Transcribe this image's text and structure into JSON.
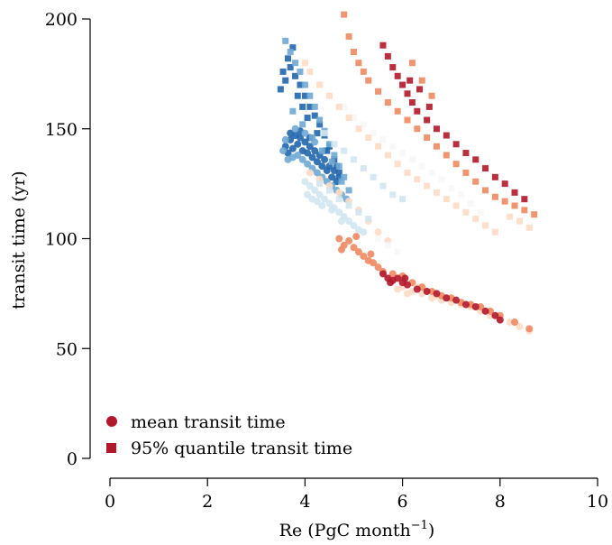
{
  "chart_data": {
    "type": "scatter",
    "xlabel": "Re (PgC month",
    "xlabel_sup": "−1",
    "xlabel_end": ")",
    "ylabel": "transit time (yr)",
    "xlim": [
      0,
      10
    ],
    "ylim": [
      0,
      200
    ],
    "xticks": [
      0,
      2,
      4,
      6,
      8,
      10
    ],
    "yticks": [
      0,
      50,
      100,
      150,
      200
    ],
    "grid": false,
    "legend_position": "bottom-left",
    "legend": [
      {
        "label": "mean transit time",
        "marker": "circle",
        "color": "#b2182b"
      },
      {
        "label": "95% quantile transit time",
        "marker": "square",
        "color": "#b2182b"
      }
    ],
    "series": [
      {
        "marker": "circle",
        "color": "#2166ac",
        "points": [
          [
            3.6,
            142
          ],
          [
            3.7,
            145
          ],
          [
            3.8,
            147
          ],
          [
            3.9,
            146
          ],
          [
            4.0,
            144
          ],
          [
            4.1,
            142
          ],
          [
            4.2,
            140
          ],
          [
            4.3,
            138
          ],
          [
            4.4,
            136
          ],
          [
            4.5,
            133
          ],
          [
            4.6,
            131
          ],
          [
            4.7,
            128
          ],
          [
            3.65,
            139
          ],
          [
            3.75,
            141
          ],
          [
            3.85,
            143
          ],
          [
            3.95,
            140
          ],
          [
            4.05,
            139
          ],
          [
            4.15,
            137
          ],
          [
            4.25,
            135
          ],
          [
            4.35,
            133
          ],
          [
            4.45,
            131
          ],
          [
            4.55,
            128
          ],
          [
            4.65,
            126
          ],
          [
            3.7,
            148
          ],
          [
            3.9,
            149
          ],
          [
            4.1,
            146
          ]
        ]
      },
      {
        "marker": "circle",
        "color": "#6fa8d3",
        "points": [
          [
            3.55,
            140
          ],
          [
            3.65,
            136
          ],
          [
            3.75,
            137
          ],
          [
            3.85,
            138
          ],
          [
            3.95,
            136
          ],
          [
            4.05,
            134
          ],
          [
            4.15,
            132
          ],
          [
            4.25,
            130
          ],
          [
            4.35,
            128
          ],
          [
            4.45,
            126
          ],
          [
            4.55,
            124
          ],
          [
            4.65,
            122
          ],
          [
            4.75,
            120
          ],
          [
            4.85,
            118
          ],
          [
            3.6,
            145
          ],
          [
            3.8,
            150
          ],
          [
            4.0,
            148
          ],
          [
            4.2,
            144
          ],
          [
            4.4,
            140
          ]
        ]
      },
      {
        "marker": "circle",
        "color": "#d1e5f0",
        "points": [
          [
            4.0,
            126
          ],
          [
            4.1,
            124
          ],
          [
            4.2,
            122
          ],
          [
            4.3,
            120
          ],
          [
            4.4,
            118
          ],
          [
            4.5,
            116
          ],
          [
            4.6,
            114
          ],
          [
            4.7,
            112
          ],
          [
            4.8,
            110
          ],
          [
            4.9,
            108
          ],
          [
            5.0,
            106
          ],
          [
            5.1,
            104
          ],
          [
            5.2,
            103
          ],
          [
            4.05,
            120
          ],
          [
            4.15,
            118
          ],
          [
            4.25,
            117
          ],
          [
            4.35,
            115
          ],
          [
            4.55,
            113
          ],
          [
            4.75,
            108
          ]
        ]
      },
      {
        "marker": "circle",
        "color": "#fddbc7",
        "points": [
          [
            4.1,
            130
          ],
          [
            4.3,
            127
          ],
          [
            4.5,
            124
          ],
          [
            4.7,
            121
          ],
          [
            4.9,
            117
          ],
          [
            5.1,
            113
          ],
          [
            5.3,
            108
          ],
          [
            5.5,
            103
          ],
          [
            5.7,
            99
          ],
          [
            6.0,
            78
          ],
          [
            6.2,
            76
          ],
          [
            6.4,
            75
          ],
          [
            6.6,
            73
          ],
          [
            6.8,
            72
          ],
          [
            7.0,
            71
          ],
          [
            7.2,
            70
          ],
          [
            7.4,
            69
          ],
          [
            7.6,
            67
          ],
          [
            7.8,
            65
          ],
          [
            8.0,
            63
          ],
          [
            8.2,
            62
          ],
          [
            8.4,
            60
          ],
          [
            8.6,
            58
          ],
          [
            5.9,
            77
          ],
          [
            6.1,
            75
          ],
          [
            6.3,
            78
          ],
          [
            6.5,
            76
          ],
          [
            6.7,
            74
          ]
        ]
      },
      {
        "marker": "circle",
        "color": "#ef8a62",
        "points": [
          [
            4.7,
            100
          ],
          [
            4.8,
            97
          ],
          [
            4.9,
            99
          ],
          [
            5.0,
            96
          ],
          [
            5.1,
            94
          ],
          [
            5.2,
            92
          ],
          [
            5.3,
            90
          ],
          [
            5.4,
            89
          ],
          [
            5.5,
            87
          ],
          [
            5.6,
            85
          ],
          [
            5.8,
            84
          ],
          [
            6.0,
            83
          ],
          [
            6.2,
            80
          ],
          [
            6.4,
            78
          ],
          [
            6.6,
            76
          ],
          [
            6.8,
            74
          ],
          [
            7.0,
            73
          ],
          [
            7.2,
            71
          ],
          [
            7.4,
            70
          ],
          [
            7.6,
            69
          ],
          [
            7.8,
            67
          ],
          [
            8.0,
            65
          ],
          [
            8.3,
            62
          ],
          [
            8.6,
            59
          ],
          [
            4.75,
            95
          ],
          [
            5.05,
            101
          ],
          [
            5.35,
            93
          ]
        ]
      },
      {
        "marker": "circle",
        "color": "#b2182b",
        "points": [
          [
            5.6,
            84
          ],
          [
            5.7,
            82
          ],
          [
            5.8,
            81
          ],
          [
            5.9,
            82
          ],
          [
            6.0,
            80
          ],
          [
            6.1,
            79
          ],
          [
            6.3,
            77
          ],
          [
            6.5,
            76
          ],
          [
            6.7,
            75
          ],
          [
            6.9,
            73
          ],
          [
            7.1,
            72
          ],
          [
            7.3,
            70
          ],
          [
            7.5,
            69
          ],
          [
            7.7,
            67
          ],
          [
            7.9,
            65
          ],
          [
            8.0,
            63
          ],
          [
            5.75,
            80
          ],
          [
            6.05,
            82
          ]
        ]
      },
      {
        "marker": "square",
        "color": "#2166ac",
        "points": [
          [
            3.5,
            168
          ],
          [
            3.6,
            172
          ],
          [
            3.7,
            178
          ],
          [
            3.8,
            174
          ],
          [
            3.9,
            170
          ],
          [
            4.0,
            165
          ],
          [
            4.1,
            160
          ],
          [
            4.2,
            156
          ],
          [
            4.3,
            152
          ],
          [
            4.4,
            147
          ],
          [
            4.5,
            142
          ],
          [
            4.6,
            136
          ],
          [
            4.7,
            130
          ],
          [
            3.55,
            176
          ],
          [
            3.65,
            182
          ],
          [
            3.75,
            187
          ],
          [
            3.85,
            165
          ],
          [
            3.95,
            160
          ],
          [
            4.05,
            155
          ],
          [
            4.25,
            148
          ],
          [
            4.45,
            140
          ],
          [
            4.65,
            133
          ]
        ]
      },
      {
        "marker": "square",
        "color": "#6fa8d3",
        "points": [
          [
            3.6,
            190
          ],
          [
            3.7,
            185
          ],
          [
            3.8,
            180
          ],
          [
            3.9,
            176
          ],
          [
            4.0,
            170
          ],
          [
            4.1,
            165
          ],
          [
            4.2,
            160
          ],
          [
            4.3,
            154
          ],
          [
            4.4,
            149
          ],
          [
            4.5,
            143
          ],
          [
            4.6,
            138
          ],
          [
            4.7,
            133
          ],
          [
            4.8,
            128
          ],
          [
            4.9,
            122
          ],
          [
            3.75,
            158
          ],
          [
            3.95,
            152
          ],
          [
            4.15,
            146
          ],
          [
            4.35,
            140
          ],
          [
            4.55,
            135
          ],
          [
            4.75,
            126
          ]
        ]
      },
      {
        "marker": "square",
        "color": "#d1e5f0",
        "points": [
          [
            4.4,
            148
          ],
          [
            4.6,
            143
          ],
          [
            4.8,
            140
          ],
          [
            5.0,
            136
          ],
          [
            5.2,
            132
          ],
          [
            5.4,
            128
          ],
          [
            5.6,
            124
          ],
          [
            5.8,
            120
          ],
          [
            6.0,
            118
          ],
          [
            4.3,
            125
          ],
          [
            4.5,
            122
          ],
          [
            4.7,
            118
          ],
          [
            4.9,
            115
          ],
          [
            5.1,
            112
          ],
          [
            5.3,
            109
          ]
        ]
      },
      {
        "marker": "square",
        "color": "#f7f7f7",
        "points": [
          [
            4.8,
            160
          ],
          [
            5.0,
            155
          ],
          [
            5.2,
            152
          ],
          [
            5.4,
            148
          ],
          [
            5.6,
            145
          ],
          [
            5.8,
            142
          ],
          [
            6.0,
            139
          ],
          [
            6.2,
            136
          ],
          [
            6.4,
            133
          ],
          [
            6.6,
            130
          ],
          [
            6.8,
            127
          ],
          [
            7.0,
            123
          ],
          [
            7.2,
            120
          ],
          [
            7.4,
            116
          ],
          [
            7.6,
            112
          ],
          [
            5.5,
            100
          ],
          [
            5.7,
            97
          ],
          [
            5.9,
            94
          ]
        ]
      },
      {
        "marker": "square",
        "color": "#fddbc7",
        "points": [
          [
            4.0,
            180
          ],
          [
            4.1,
            176
          ],
          [
            4.3,
            170
          ],
          [
            4.5,
            165
          ],
          [
            4.7,
            160
          ],
          [
            4.9,
            155
          ],
          [
            5.1,
            150
          ],
          [
            5.3,
            146
          ],
          [
            5.5,
            142
          ],
          [
            5.7,
            138
          ],
          [
            5.9,
            134
          ],
          [
            6.1,
            130
          ],
          [
            6.3,
            127
          ],
          [
            6.5,
            124
          ],
          [
            6.7,
            121
          ],
          [
            6.9,
            118
          ],
          [
            7.1,
            115
          ],
          [
            7.3,
            112
          ],
          [
            7.5,
            109
          ],
          [
            7.7,
            106
          ],
          [
            7.9,
            103
          ],
          [
            8.2,
            110
          ],
          [
            8.4,
            108
          ],
          [
            8.6,
            105
          ]
        ]
      },
      {
        "marker": "square",
        "color": "#ef8a62",
        "points": [
          [
            4.8,
            202
          ],
          [
            4.9,
            192
          ],
          [
            5.0,
            185
          ],
          [
            5.1,
            180
          ],
          [
            5.2,
            176
          ],
          [
            5.3,
            172
          ],
          [
            5.5,
            167
          ],
          [
            5.7,
            162
          ],
          [
            5.9,
            158
          ],
          [
            6.1,
            154
          ],
          [
            6.3,
            150
          ],
          [
            6.5,
            146
          ],
          [
            6.7,
            142
          ],
          [
            6.9,
            138
          ],
          [
            7.1,
            134
          ],
          [
            7.3,
            130
          ],
          [
            7.5,
            126
          ],
          [
            7.7,
            122
          ],
          [
            7.9,
            119
          ],
          [
            8.1,
            117
          ],
          [
            8.3,
            115
          ],
          [
            8.5,
            113
          ],
          [
            8.7,
            111
          ],
          [
            6.2,
            180
          ],
          [
            6.4,
            172
          ],
          [
            6.6,
            165
          ]
        ]
      },
      {
        "marker": "square",
        "color": "#b2182b",
        "points": [
          [
            5.6,
            188
          ],
          [
            5.7,
            183
          ],
          [
            5.8,
            178
          ],
          [
            5.9,
            174
          ],
          [
            6.0,
            170
          ],
          [
            6.1,
            166
          ],
          [
            6.2,
            162
          ],
          [
            6.3,
            158
          ],
          [
            6.5,
            154
          ],
          [
            6.7,
            150
          ],
          [
            6.9,
            147
          ],
          [
            7.1,
            143
          ],
          [
            7.3,
            139
          ],
          [
            7.5,
            136
          ],
          [
            7.7,
            132
          ],
          [
            7.9,
            128
          ],
          [
            8.1,
            125
          ],
          [
            8.3,
            121
          ],
          [
            8.5,
            118
          ],
          [
            6.15,
            172
          ],
          [
            6.35,
            168
          ],
          [
            6.55,
            160
          ]
        ]
      }
    ]
  }
}
